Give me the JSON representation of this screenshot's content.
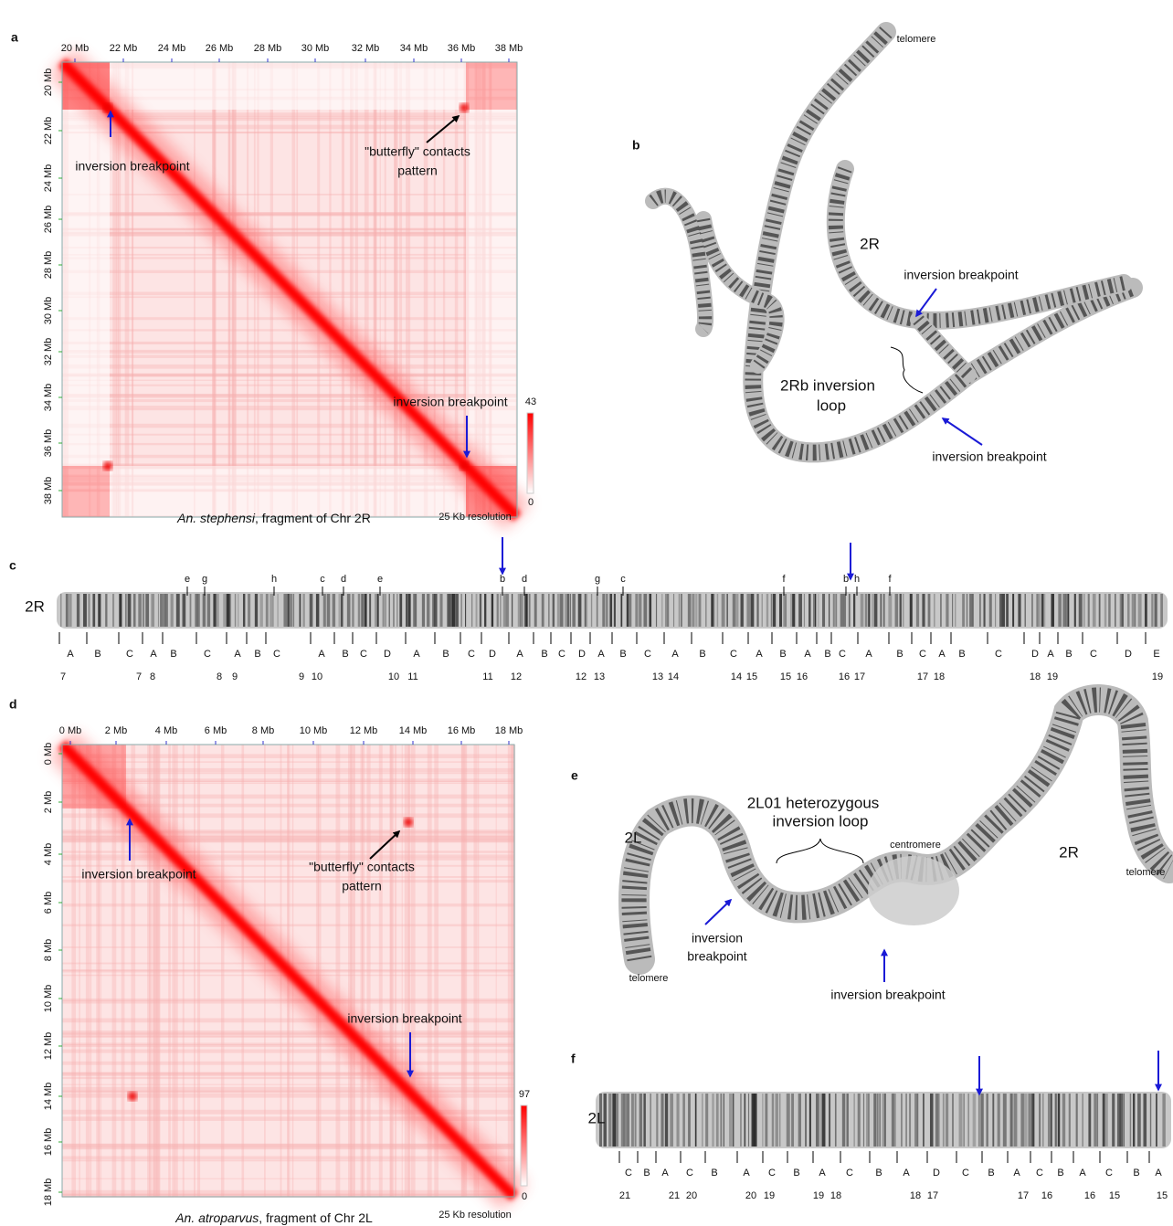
{
  "panel_letters": {
    "a": "a",
    "b": "b",
    "c": "c",
    "d": "d",
    "e": "e",
    "f": "f"
  },
  "panel_a": {
    "x_ticks": [
      "20 Mb",
      "22 Mb",
      "24 Mb",
      "26 Mb",
      "28 Mb",
      "30 Mb",
      "32 Mb",
      "34 Mb",
      "36 Mb",
      "38 Mb"
    ],
    "y_ticks": [
      "20 Mb",
      "22 Mb",
      "24 Mb",
      "26 Mb",
      "28 Mb",
      "30 Mb",
      "32 Mb",
      "34 Mb",
      "36 Mb",
      "38 Mb"
    ],
    "annotation_left": "inversion breakpoint",
    "annotation_butterfly": [
      "\"butterfly\" contacts",
      "pattern"
    ],
    "annotation_right": "inversion breakpoint",
    "colorbar_max": "43",
    "colorbar_min": "0",
    "caption_species": "An. stephensi",
    "caption_rest": ", fragment  of Chr 2R",
    "resolution": "25 Kb resolution"
  },
  "panel_b": {
    "telomere": "telomere",
    "arm": "2R",
    "breakpoint_top": "inversion breakpoint",
    "loop": [
      "2Rb inversion",
      "loop"
    ],
    "breakpoint_bottom": "inversion breakpoint"
  },
  "panel_c": {
    "arm": "2R",
    "subbands": [
      "e",
      "g",
      "h",
      "c",
      "d",
      "e",
      "b",
      "d",
      "g",
      "c",
      "f",
      "b",
      "h",
      "f"
    ],
    "bands": [
      "A",
      "B",
      "C",
      "A",
      "B",
      "C",
      "A",
      "B",
      "C",
      "A",
      "B",
      "C",
      "D",
      "A",
      "B",
      "C",
      "D",
      "A",
      "B",
      "C",
      "D",
      "A",
      "B",
      "C",
      "A",
      "B",
      "C",
      "A",
      "B",
      "A",
      "B",
      "C",
      "A",
      "B",
      "C",
      "A",
      "B",
      "C",
      "D",
      "A",
      "B",
      "C",
      "D",
      "E"
    ],
    "divisions": [
      "7",
      "7",
      "8",
      "8",
      "9",
      "9",
      "10",
      "10",
      "11",
      "11",
      "12",
      "12",
      "13",
      "13",
      "14",
      "14",
      "15",
      "15",
      "16",
      "16",
      "17",
      "17",
      "18",
      "18",
      "19",
      "19"
    ]
  },
  "panel_d": {
    "x_ticks": [
      "0 Mb",
      "2 Mb",
      "4 Mb",
      "6 Mb",
      "8 Mb",
      "10 Mb",
      "12 Mb",
      "14 Mb",
      "16 Mb",
      "18 Mb"
    ],
    "y_ticks": [
      "0 Mb",
      "2 Mb",
      "4 Mb",
      "6 Mb",
      "8 Mb",
      "10 Mb",
      "12 Mb",
      "14 Mb",
      "16 Mb",
      "18 Mb"
    ],
    "annotation_left": "inversion breakpoint",
    "annotation_butterfly": [
      "\"butterfly\" contacts",
      "pattern"
    ],
    "annotation_right": "inversion breakpoint",
    "colorbar_max": "97",
    "colorbar_min": "0",
    "caption_species": "An. atroparvus",
    "caption_rest": ", fragment of Chr 2L",
    "resolution": "25 Kb resolution"
  },
  "panel_e": {
    "loop": [
      "2L01 heterozygous",
      "inversion loop"
    ],
    "arm_left": "2L",
    "centromere": "centromere",
    "arm_right": "2R",
    "telomere_right": "telomere",
    "breakpoint_left": [
      "inversion",
      "breakpoint"
    ],
    "telomere_left": "telomere",
    "breakpoint_bottom": "inversion breakpoint"
  },
  "panel_f": {
    "arm": "2L",
    "bands": [
      "C",
      "B",
      "A",
      "C",
      "B",
      "A",
      "C",
      "B",
      "A",
      "C",
      "B",
      "A",
      "D",
      "C",
      "B",
      "A",
      "C",
      "B",
      "A",
      "C",
      "B",
      "A"
    ],
    "divisions": [
      "21",
      "21",
      "20",
      "20",
      "19",
      "19",
      "18",
      "18",
      "17",
      "17",
      "16",
      "16",
      "15",
      "15"
    ]
  }
}
